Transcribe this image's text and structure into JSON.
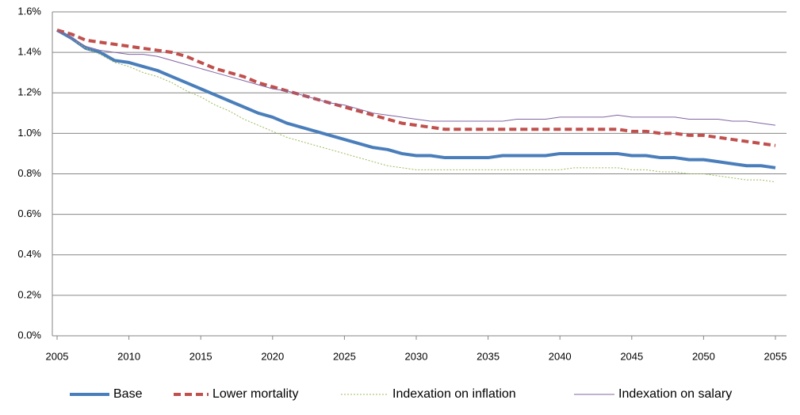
{
  "chart_data": {
    "type": "line",
    "x": [
      2005,
      2006,
      2007,
      2008,
      2009,
      2010,
      2011,
      2012,
      2013,
      2014,
      2015,
      2016,
      2017,
      2018,
      2019,
      2020,
      2021,
      2022,
      2023,
      2024,
      2025,
      2026,
      2027,
      2028,
      2029,
      2030,
      2031,
      2032,
      2033,
      2034,
      2035,
      2036,
      2037,
      2038,
      2039,
      2040,
      2041,
      2042,
      2043,
      2044,
      2045,
      2046,
      2047,
      2048,
      2049,
      2050,
      2051,
      2052,
      2053,
      2054,
      2055
    ],
    "series": [
      {
        "name": "Base",
        "color": "#4a7ebb",
        "values": [
          1.51,
          1.47,
          1.42,
          1.4,
          1.36,
          1.35,
          1.33,
          1.31,
          1.28,
          1.25,
          1.22,
          1.19,
          1.16,
          1.13,
          1.1,
          1.08,
          1.05,
          1.03,
          1.01,
          0.99,
          0.97,
          0.95,
          0.93,
          0.92,
          0.9,
          0.89,
          0.89,
          0.88,
          0.88,
          0.88,
          0.88,
          0.89,
          0.89,
          0.89,
          0.89,
          0.9,
          0.9,
          0.9,
          0.9,
          0.9,
          0.89,
          0.89,
          0.88,
          0.88,
          0.87,
          0.87,
          0.86,
          0.85,
          0.84,
          0.84,
          0.83
        ]
      },
      {
        "name": "Lower mortality",
        "color": "#c0504d",
        "values": [
          1.51,
          1.49,
          1.46,
          1.45,
          1.44,
          1.43,
          1.42,
          1.41,
          1.4,
          1.38,
          1.35,
          1.32,
          1.3,
          1.28,
          1.25,
          1.23,
          1.21,
          1.19,
          1.17,
          1.15,
          1.13,
          1.11,
          1.09,
          1.07,
          1.05,
          1.04,
          1.03,
          1.02,
          1.02,
          1.02,
          1.02,
          1.02,
          1.02,
          1.02,
          1.02,
          1.02,
          1.02,
          1.02,
          1.02,
          1.02,
          1.01,
          1.01,
          1.0,
          1.0,
          0.99,
          0.99,
          0.98,
          0.97,
          0.96,
          0.95,
          0.94
        ]
      },
      {
        "name": "Indexation on inflation",
        "color": "#9bbb59",
        "values": [
          1.51,
          1.47,
          1.42,
          1.39,
          1.35,
          1.33,
          1.3,
          1.28,
          1.25,
          1.21,
          1.18,
          1.14,
          1.11,
          1.07,
          1.04,
          1.01,
          0.98,
          0.96,
          0.94,
          0.92,
          0.9,
          0.88,
          0.86,
          0.84,
          0.83,
          0.82,
          0.82,
          0.82,
          0.82,
          0.82,
          0.82,
          0.82,
          0.82,
          0.82,
          0.82,
          0.82,
          0.83,
          0.83,
          0.83,
          0.83,
          0.82,
          0.82,
          0.81,
          0.81,
          0.8,
          0.8,
          0.79,
          0.78,
          0.77,
          0.77,
          0.76
        ]
      },
      {
        "name": "Indexation on salary",
        "color": "#8064a2",
        "values": [
          1.51,
          1.47,
          1.43,
          1.41,
          1.4,
          1.39,
          1.39,
          1.38,
          1.36,
          1.34,
          1.32,
          1.3,
          1.28,
          1.26,
          1.24,
          1.22,
          1.21,
          1.19,
          1.17,
          1.15,
          1.14,
          1.12,
          1.1,
          1.09,
          1.08,
          1.07,
          1.06,
          1.06,
          1.06,
          1.06,
          1.06,
          1.06,
          1.07,
          1.07,
          1.07,
          1.08,
          1.08,
          1.08,
          1.08,
          1.09,
          1.08,
          1.08,
          1.08,
          1.08,
          1.07,
          1.07,
          1.07,
          1.06,
          1.06,
          1.05,
          1.04
        ]
      }
    ],
    "xlim": [
      2005,
      2055
    ],
    "xticks": [
      2005,
      2010,
      2015,
      2020,
      2025,
      2030,
      2035,
      2040,
      2045,
      2050,
      2055
    ],
    "ylim": [
      0,
      1.6
    ],
    "yticks": [
      {
        "value": 0,
        "label": "0.0%"
      },
      {
        "value": 0.2,
        "label": "0.2%"
      },
      {
        "value": 0.4,
        "label": "0.4%"
      },
      {
        "value": 0.6,
        "label": "0.6%"
      },
      {
        "value": 0.8,
        "label": "0.8%"
      },
      {
        "value": 1.0,
        "label": "1.0%"
      },
      {
        "value": 1.2,
        "label": "1.2%"
      },
      {
        "value": 1.4,
        "label": "1.4%"
      },
      {
        "value": 1.6,
        "label": "1.6%"
      }
    ],
    "grid": true,
    "legend": "bottom"
  }
}
